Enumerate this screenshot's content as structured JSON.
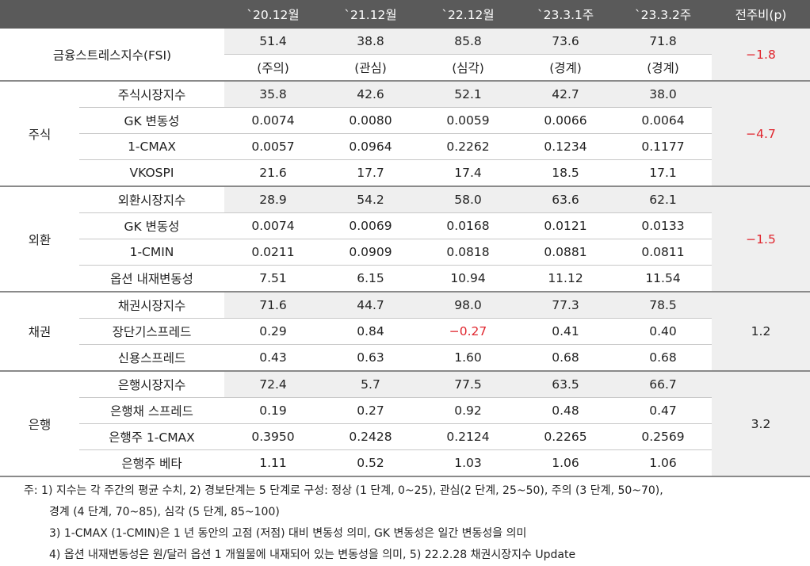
{
  "header": {
    "columns": [
      "`20.12월",
      "`21.12월",
      "`22.12월",
      "`23.3.1주",
      "`23.3.2주",
      "전주비(p)"
    ]
  },
  "sections": [
    {
      "label": "금융스트레스지수(FSI)",
      "change": "−1.8",
      "rows": [
        {
          "values": [
            "51.4",
            "38.8",
            "85.8",
            "73.6",
            "71.8"
          ]
        },
        {
          "values": [
            "(주의)",
            "(관심)",
            "(심각)",
            "(경계)",
            "(경계)"
          ]
        }
      ]
    },
    {
      "label": "주식",
      "change": "−4.7",
      "rows": [
        {
          "name": "주식시장지수",
          "values": [
            "35.8",
            "42.6",
            "52.1",
            "42.7",
            "38.0"
          ]
        },
        {
          "name": "GK 변동성",
          "values": [
            "0.0074",
            "0.0080",
            "0.0059",
            "0.0066",
            "0.0064"
          ]
        },
        {
          "name": "1-CMAX",
          "values": [
            "0.0057",
            "0.0964",
            "0.2262",
            "0.1234",
            "0.1177"
          ]
        },
        {
          "name": "VKOSPI",
          "values": [
            "21.6",
            "17.7",
            "17.4",
            "18.5",
            "17.1"
          ]
        }
      ]
    },
    {
      "label": "외환",
      "change": "−1.5",
      "rows": [
        {
          "name": "외환시장지수",
          "values": [
            "28.9",
            "54.2",
            "58.0",
            "63.6",
            "62.1"
          ]
        },
        {
          "name": "GK 변동성",
          "values": [
            "0.0074",
            "0.0069",
            "0.0168",
            "0.0121",
            "0.0133"
          ]
        },
        {
          "name": "1-CMIN",
          "values": [
            "0.0211",
            "0.0909",
            "0.0818",
            "0.0881",
            "0.0811"
          ]
        },
        {
          "name": "옵션 내재변동성",
          "values": [
            "7.51",
            "6.15",
            "10.94",
            "11.12",
            "11.54"
          ]
        }
      ]
    },
    {
      "label": "채권",
      "change": "1.2",
      "rows": [
        {
          "name": "채권시장지수",
          "values": [
            "71.6",
            "44.7",
            "98.0",
            "77.3",
            "78.5"
          ]
        },
        {
          "name": "장단기스프레드",
          "values": [
            "0.29",
            "0.84",
            "−0.27",
            "0.41",
            "0.40"
          ]
        },
        {
          "name": "신용스프레드",
          "values": [
            "0.43",
            "0.63",
            "1.60",
            "0.68",
            "0.68"
          ]
        }
      ]
    },
    {
      "label": "은행",
      "change": "3.2",
      "rows": [
        {
          "name": "은행시장지수",
          "values": [
            "72.4",
            "5.7",
            "77.5",
            "63.5",
            "66.7"
          ]
        },
        {
          "name": "은행채 스프레드",
          "values": [
            "0.19",
            "0.27",
            "0.92",
            "0.48",
            "0.47"
          ]
        },
        {
          "name": "은행주 1-CMAX",
          "values": [
            "0.3950",
            "0.2428",
            "0.2124",
            "0.2265",
            "0.2569"
          ]
        },
        {
          "name": "은행주 베타",
          "values": [
            "1.11",
            "0.52",
            "1.03",
            "1.06",
            "1.06"
          ]
        }
      ]
    }
  ],
  "notes": [
    "주: 1) 지수는 각 주간의 평균 수치, 2) 경보단계는 5 단계로 구성: 정상 (1 단계, 0~25), 관심(2 단계, 25~50), 주의 (3 단계, 50~70),",
    "경계 (4 단계, 70~85), 심각 (5 단계, 85~100)",
    "3) 1-CMAX (1-CMIN)은 1 년 동안의 고점 (저점) 대비 변동성 의미, GK 변동성은 일간 변동성을 의미",
    "4) 옵션 내재변동성은 원/달러 옵션 1 개월물에 내재되어 있는 변동성을 의미, 5) 22.2.28 채권시장지수 Update"
  ]
}
